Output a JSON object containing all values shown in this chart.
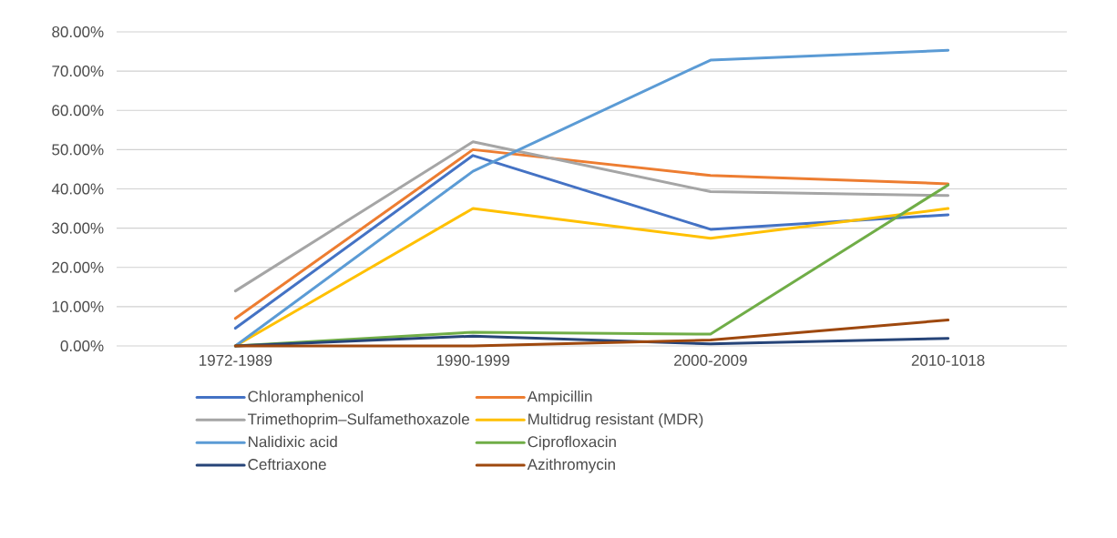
{
  "chart_data": {
    "type": "line",
    "categories": [
      "1972-1989",
      "1990-1999",
      "2000-2009",
      "2010-1018"
    ],
    "ylim": [
      0,
      80
    ],
    "yticks": [
      {
        "value": 0,
        "label": "0.00%"
      },
      {
        "value": 10,
        "label": "10.00%"
      },
      {
        "value": 20,
        "label": "20.00%"
      },
      {
        "value": 30,
        "label": "30.00%"
      },
      {
        "value": 40,
        "label": "40.00%"
      },
      {
        "value": 50,
        "label": "50.00%"
      },
      {
        "value": 60,
        "label": "60.00%"
      },
      {
        "value": 70,
        "label": "70.00%"
      },
      {
        "value": 80,
        "label": "80.00%"
      }
    ],
    "grid": "y",
    "legend": "bottom",
    "marker": "none",
    "line_style": "solid",
    "series": [
      {
        "name": "Chloramphenicol",
        "color": "#4472c4",
        "values": [
          4.5,
          48.5,
          29.7,
          33.4
        ]
      },
      {
        "name": "Ampicillin",
        "color": "#ed7d31",
        "values": [
          7,
          50,
          43.4,
          41.3
        ]
      },
      {
        "name": "Trimethoprim–Sulfamethoxazole",
        "color": "#a5a5a5",
        "values": [
          14,
          52,
          39.3,
          38.3
        ]
      },
      {
        "name": "Multidrug resistant (MDR)",
        "color": "#ffc000",
        "values": [
          0,
          35,
          27.4,
          35
        ]
      },
      {
        "name": "Nalidixic acid",
        "color": "#5b9bd5",
        "values": [
          0,
          44.5,
          72.8,
          75.3
        ]
      },
      {
        "name": "Ciprofloxacin",
        "color": "#70ad47",
        "values": [
          0,
          3.5,
          3,
          41
        ]
      },
      {
        "name": "Ceftriaxone",
        "color": "#264478",
        "values": [
          0,
          2.5,
          0.5,
          1.9
        ]
      },
      {
        "name": "Azithromycin",
        "color": "#9e480e",
        "values": [
          0,
          0,
          1.5,
          6.6
        ]
      }
    ]
  }
}
